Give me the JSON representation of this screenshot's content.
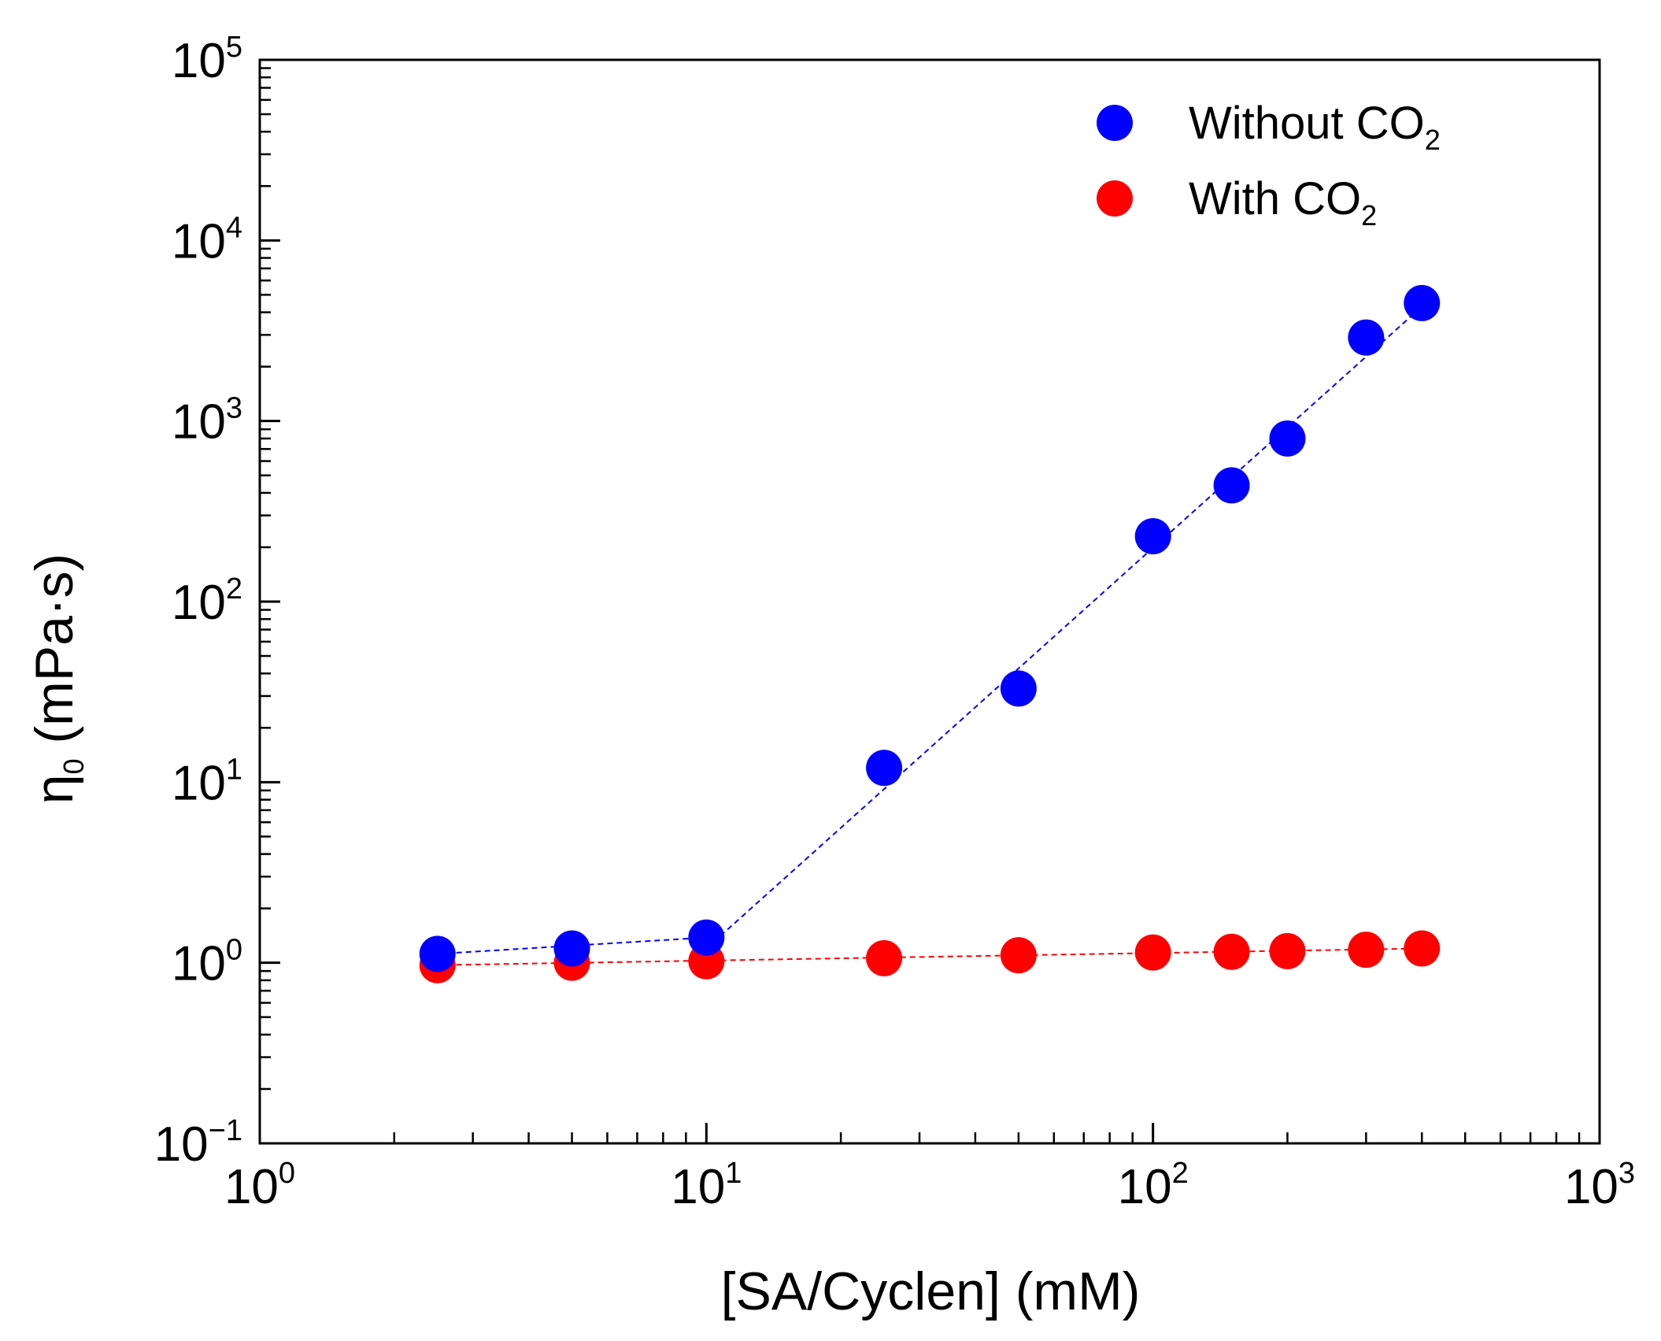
{
  "chart_data": {
    "type": "scatter",
    "title": "",
    "xlabel": "[SA/Cyclen] (mM)",
    "ylabel_main": "η",
    "ylabel_sub": "0",
    "ylabel_unit": " (mPa·s)",
    "xscale": "log",
    "yscale": "log",
    "xlim": [
      1,
      1000
    ],
    "ylim": [
      0.1,
      100000
    ],
    "x_ticks": [
      {
        "value": 1,
        "base": "10",
        "exp": "0"
      },
      {
        "value": 10,
        "base": "10",
        "exp": "1"
      },
      {
        "value": 100,
        "base": "10",
        "exp": "2"
      },
      {
        "value": 1000,
        "base": "10",
        "exp": "3"
      }
    ],
    "y_ticks": [
      {
        "value": 0.1,
        "base": "10",
        "exp": "−1"
      },
      {
        "value": 1,
        "base": "10",
        "exp": "0"
      },
      {
        "value": 10,
        "base": "10",
        "exp": "1"
      },
      {
        "value": 100,
        "base": "10",
        "exp": "2"
      },
      {
        "value": 1000,
        "base": "10",
        "exp": "3"
      },
      {
        "value": 10000,
        "base": "10",
        "exp": "4"
      },
      {
        "value": 100000,
        "base": "10",
        "exp": "5"
      }
    ],
    "legend_position": "top-right",
    "series": [
      {
        "name": "Without CO2",
        "label_main": "Without CO",
        "label_sub": "2",
        "color": "#0000ff",
        "x": [
          2.5,
          5,
          10,
          25,
          50,
          100,
          150,
          200,
          300,
          400
        ],
        "y": [
          1.12,
          1.2,
          1.38,
          12,
          33,
          230,
          440,
          800,
          2900,
          4500
        ],
        "fit_lines": [
          {
            "x": [
              2.5,
              10
            ],
            "y": [
              1.12,
              1.38
            ]
          },
          {
            "x": [
              10,
              400
            ],
            "y": [
              1.2,
              4300
            ]
          }
        ]
      },
      {
        "name": "With CO2",
        "label_main": "With CO",
        "label_sub": "2",
        "color": "#ff0000",
        "x": [
          2.5,
          5,
          10,
          25,
          50,
          100,
          150,
          200,
          300,
          400
        ],
        "y": [
          0.97,
          1.0,
          1.02,
          1.06,
          1.1,
          1.14,
          1.15,
          1.16,
          1.18,
          1.2
        ],
        "fit_lines": [
          {
            "x": [
              2.5,
              400
            ],
            "y": [
              0.97,
              1.2
            ]
          }
        ]
      }
    ]
  }
}
